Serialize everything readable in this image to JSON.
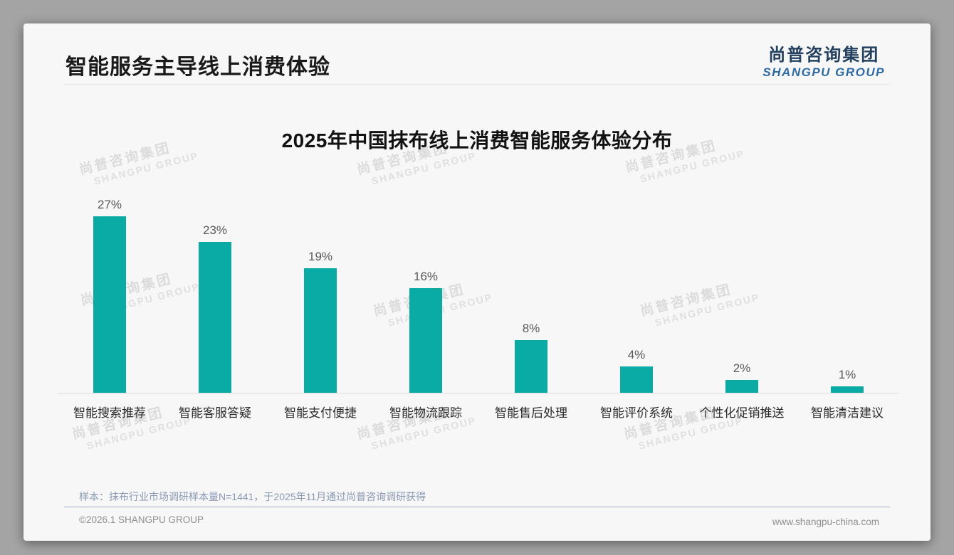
{
  "header": {
    "title": "智能服务主导线上消费体验",
    "logo": {
      "cn": "尚普咨询集团",
      "en": "SHANGPU GROUP"
    }
  },
  "watermark": {
    "line1": "尚普咨询集团",
    "line2": "SHANGPU GROUP"
  },
  "chart_data": {
    "type": "bar",
    "title": "2025年中国抹布线上消费智能服务体验分布",
    "categories": [
      "智能搜索推荐",
      "智能客服答疑",
      "智能支付便捷",
      "智能物流跟踪",
      "智能售后处理",
      "智能评价系统",
      "个性化促销推送",
      "智能清洁建议"
    ],
    "values": [
      27,
      23,
      19,
      16,
      8,
      4,
      2,
      1
    ],
    "value_labels": [
      "27%",
      "23%",
      "19%",
      "16%",
      "8%",
      "4%",
      "2%",
      "1%"
    ],
    "value_suffix": "%",
    "xlabel": "",
    "ylabel": "",
    "ylim": [
      0,
      30
    ],
    "grid": false,
    "legend": false,
    "bar_color": "#0aaba5"
  },
  "footnote": {
    "sample_note": "样本：抹布行业市场调研样本量N=1441，于2025年11月通过尚普咨询调研获得"
  },
  "footer": {
    "copyright": "©2026.1 SHANGPU GROUP",
    "website": "www.shangpu-china.com"
  },
  "colors": {
    "accent_teal": "#0aaba5",
    "logo_navy": "#24405f",
    "logo_blue": "#2f6ba3",
    "note_blue_gray": "#8a99b3",
    "page_background": "#a4a4a4",
    "card_background": "#f7f7f7"
  }
}
